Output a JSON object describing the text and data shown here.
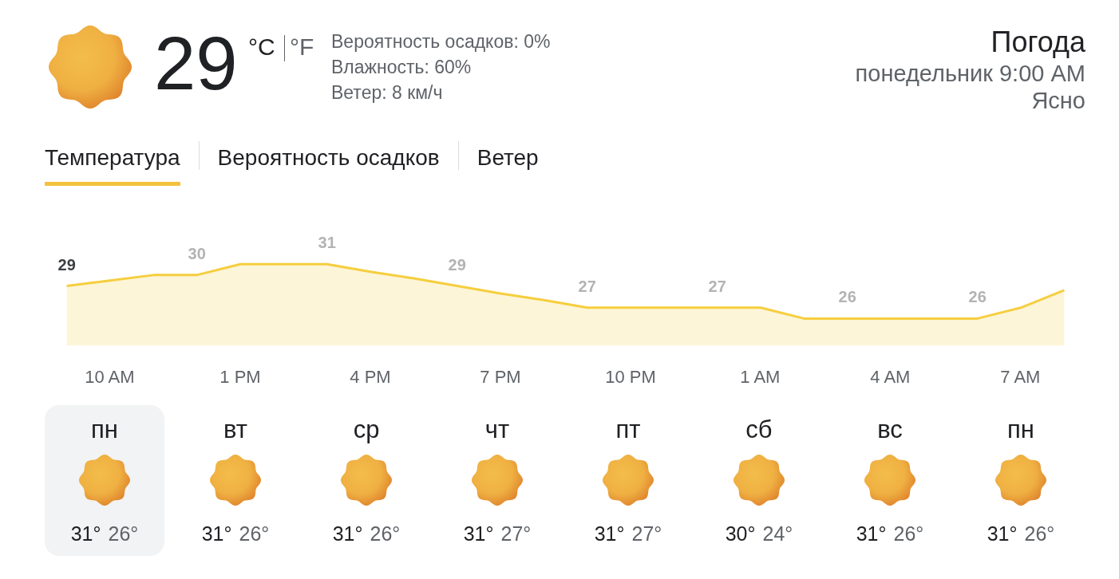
{
  "chart_data": {
    "type": "area",
    "title": "Погода",
    "subtitle": "понедельник 9:00 AM",
    "annotations": [
      "29",
      "°C",
      "°F",
      "Вероятность осадков: 0%",
      "Влажность: 60%",
      "Ветер: 8 км/ч",
      "Ясно",
      "Температура",
      "Вероятность осадков",
      "Ветер",
      "пн",
      "31°",
      "26°",
      "вт",
      "31°",
      "26°",
      "ср",
      "31°",
      "26°",
      "чт",
      "31°",
      "27°",
      "пт",
      "31°",
      "27°",
      "сб",
      "30°",
      "24°",
      "вс",
      "31°",
      "26°",
      "пн",
      "31°",
      "26°"
    ],
    "categories": [
      null,
      "10 AM",
      null,
      null,
      "1 PM",
      null,
      null,
      "4 PM",
      null,
      null,
      "7 PM",
      null,
      null,
      "10 PM",
      null,
      null,
      "1 AM",
      null,
      null,
      "4 AM",
      null,
      null,
      "7 AM",
      null
    ],
    "series": [
      {
        "color": "#f6ce3e",
        "values": [
          29,
          29.5,
          30,
          30,
          31,
          31,
          31,
          30.3,
          29.7,
          29,
          28.3,
          27.7,
          27,
          27,
          27,
          27,
          27,
          26,
          26,
          26,
          26,
          26,
          27,
          28.6
        ],
        "value_labels": [
          "29",
          null,
          null,
          "30",
          null,
          null,
          "31",
          null,
          null,
          "29",
          null,
          null,
          "27",
          null,
          null,
          "27",
          null,
          null,
          "26",
          null,
          null,
          "26",
          null,
          null
        ]
      }
    ],
    "tick_labels": "x"
  }
}
